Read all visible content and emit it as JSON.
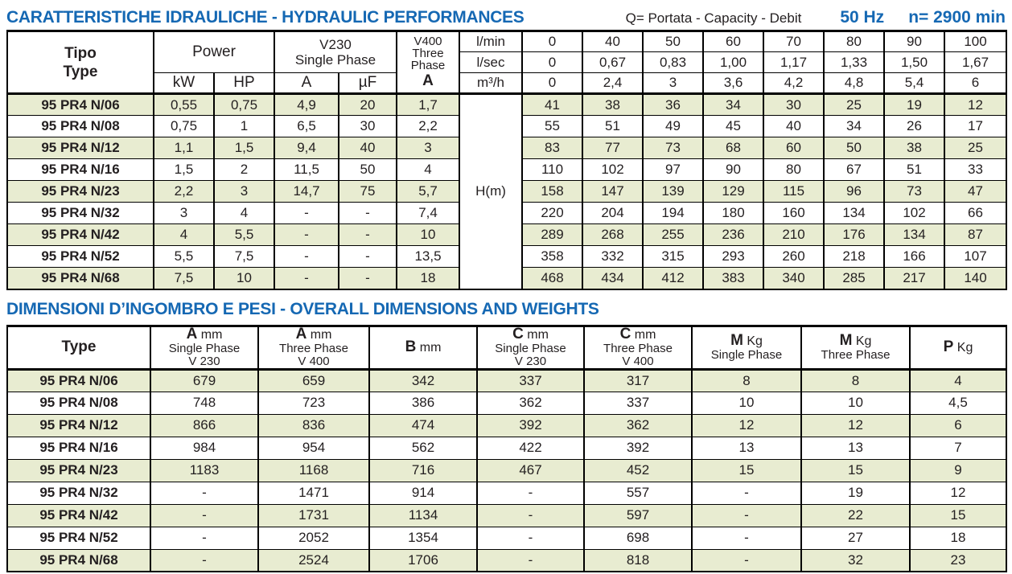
{
  "header": {
    "title": "CARATTERISTICHE IDRAULICHE - HYDRAULIC PERFORMANCES",
    "subtitle": "Q= Portata - Capacity - Debit",
    "frequency": "50 Hz",
    "speed": "n= 2900 min"
  },
  "section2": {
    "title": "DIMENSIONI D’INGOMBRO E PESI - OVERALL DIMENSIONS AND WEIGHTS"
  },
  "colors": {
    "accent_blue": "#1568b3",
    "row_stripe_green": "#e8ecd1"
  },
  "hydraulic_table": {
    "type_label_1": "Tipo",
    "type_label_2": "Type",
    "power_label": "Power",
    "kw_label": "kW",
    "hp_label": "HP",
    "v230_line1": "V230",
    "v230_line2": "Single Phase",
    "a_label": "A",
    "uf_label": "µF",
    "v400_line1": "V400",
    "v400_line2": "Three",
    "v400_line3": "Phase",
    "v400_a_label": "A",
    "unit_lmin": "l/min",
    "unit_lsec": "l/sec",
    "unit_m3h": "m³/h",
    "flow_lmin": [
      "0",
      "40",
      "50",
      "60",
      "70",
      "80",
      "90",
      "100"
    ],
    "flow_lsec": [
      "0",
      "0,67",
      "0,83",
      "1,00",
      "1,17",
      "1,33",
      "1,50",
      "1,67"
    ],
    "flow_m3h": [
      "0",
      "2,4",
      "3",
      "3,6",
      "4,2",
      "4,8",
      "5,4",
      "6"
    ],
    "head_label": "H(m)",
    "rows": [
      {
        "type": "95 PR4 N/06",
        "kw": "0,55",
        "hp": "0,75",
        "a": "4,9",
        "uf": "20",
        "a400": "1,7",
        "heads": [
          "41",
          "38",
          "36",
          "34",
          "30",
          "25",
          "19",
          "12"
        ]
      },
      {
        "type": "95 PR4 N/08",
        "kw": "0,75",
        "hp": "1",
        "a": "6,5",
        "uf": "30",
        "a400": "2,2",
        "heads": [
          "55",
          "51",
          "49",
          "45",
          "40",
          "34",
          "26",
          "17"
        ]
      },
      {
        "type": "95 PR4 N/12",
        "kw": "1,1",
        "hp": "1,5",
        "a": "9,4",
        "uf": "40",
        "a400": "3",
        "heads": [
          "83",
          "77",
          "73",
          "68",
          "60",
          "50",
          "38",
          "25"
        ]
      },
      {
        "type": "95 PR4 N/16",
        "kw": "1,5",
        "hp": "2",
        "a": "11,5",
        "uf": "50",
        "a400": "4",
        "heads": [
          "110",
          "102",
          "97",
          "90",
          "80",
          "67",
          "51",
          "33"
        ]
      },
      {
        "type": "95 PR4 N/23",
        "kw": "2,2",
        "hp": "3",
        "a": "14,7",
        "uf": "75",
        "a400": "5,7",
        "heads": [
          "158",
          "147",
          "139",
          "129",
          "115",
          "96",
          "73",
          "47"
        ]
      },
      {
        "type": "95 PR4 N/32",
        "kw": "3",
        "hp": "4",
        "a": "-",
        "uf": "-",
        "a400": "7,4",
        "heads": [
          "220",
          "204",
          "194",
          "180",
          "160",
          "134",
          "102",
          "66"
        ]
      },
      {
        "type": "95 PR4 N/42",
        "kw": "4",
        "hp": "5,5",
        "a": "-",
        "uf": "-",
        "a400": "10",
        "heads": [
          "289",
          "268",
          "255",
          "236",
          "210",
          "176",
          "134",
          "87"
        ]
      },
      {
        "type": "95 PR4 N/52",
        "kw": "5,5",
        "hp": "7,5",
        "a": "-",
        "uf": "-",
        "a400": "13,5",
        "heads": [
          "358",
          "332",
          "315",
          "293",
          "260",
          "218",
          "166",
          "107"
        ]
      },
      {
        "type": "95 PR4 N/68",
        "kw": "7,5",
        "hp": "10",
        "a": "-",
        "uf": "-",
        "a400": "18",
        "heads": [
          "468",
          "434",
          "412",
          "383",
          "340",
          "285",
          "217",
          "140"
        ]
      }
    ]
  },
  "dimensions_table": {
    "type_label": "Type",
    "headers": [
      {
        "b": "A",
        "u": "mm",
        "l2": "Single Phase",
        "l3": "V 230"
      },
      {
        "b": "A",
        "u": "mm",
        "l2": "Three Phase",
        "l3": "V 400"
      },
      {
        "b": "B",
        "u": "mm",
        "l2": "",
        "l3": ""
      },
      {
        "b": "C",
        "u": "mm",
        "l2": "Single Phase",
        "l3": "V 230"
      },
      {
        "b": "C",
        "u": "mm",
        "l2": "Three Phase",
        "l3": "V 400"
      },
      {
        "b": "M",
        "u": "Kg",
        "l2": "Single Phase",
        "l3": ""
      },
      {
        "b": "M",
        "u": "Kg",
        "l2": "Three Phase",
        "l3": ""
      },
      {
        "b": "P",
        "u": "Kg",
        "l2": "",
        "l3": ""
      }
    ],
    "rows": [
      {
        "type": "95 PR4 N/06",
        "values": [
          "679",
          "659",
          "342",
          "337",
          "317",
          "8",
          "8",
          "4"
        ]
      },
      {
        "type": "95 PR4 N/08",
        "values": [
          "748",
          "723",
          "386",
          "362",
          "337",
          "10",
          "10",
          "4,5"
        ]
      },
      {
        "type": "95 PR4 N/12",
        "values": [
          "866",
          "836",
          "474",
          "392",
          "362",
          "12",
          "12",
          "6"
        ]
      },
      {
        "type": "95 PR4 N/16",
        "values": [
          "984",
          "954",
          "562",
          "422",
          "392",
          "13",
          "13",
          "7"
        ]
      },
      {
        "type": "95 PR4 N/23",
        "values": [
          "1183",
          "1168",
          "716",
          "467",
          "452",
          "15",
          "15",
          "9"
        ]
      },
      {
        "type": "95 PR4 N/32",
        "values": [
          "-",
          "1471",
          "914",
          "-",
          "557",
          "-",
          "19",
          "12"
        ]
      },
      {
        "type": "95 PR4 N/42",
        "values": [
          "-",
          "1731",
          "1134",
          "-",
          "597",
          "-",
          "22",
          "15"
        ]
      },
      {
        "type": "95 PR4 N/52",
        "values": [
          "-",
          "2052",
          "1354",
          "-",
          "698",
          "-",
          "27",
          "18"
        ]
      },
      {
        "type": "95 PR4 N/68",
        "values": [
          "-",
          "2524",
          "1706",
          "-",
          "818",
          "-",
          "32",
          "23"
        ]
      }
    ]
  }
}
